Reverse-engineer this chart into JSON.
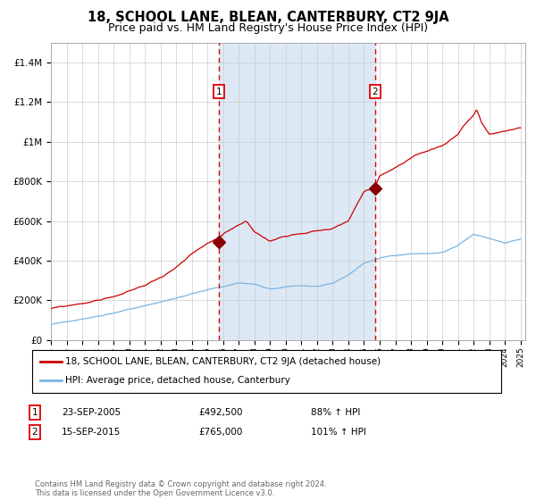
{
  "title": "18, SCHOOL LANE, BLEAN, CANTERBURY, CT2 9JA",
  "subtitle": "Price paid vs. HM Land Registry's House Price Index (HPI)",
  "title_fontsize": 10.5,
  "subtitle_fontsize": 9,
  "ylim": [
    0,
    1500000
  ],
  "yticks": [
    0,
    200000,
    400000,
    600000,
    800000,
    1000000,
    1200000,
    1400000
  ],
  "ytick_labels": [
    "£0",
    "£200K",
    "£400K",
    "£600K",
    "£800K",
    "£1M",
    "£1.2M",
    "£1.4M"
  ],
  "hpi_line_color": "#7ab4e0",
  "price_line_color": "#cc0000",
  "marker_color": "#880000",
  "bg_band_color": "#dce9f5",
  "vline_color": "#dd0000",
  "grid_color": "#cccccc",
  "legend_label_red": "18, SCHOOL LANE, BLEAN, CANTERBURY, CT2 9JA (detached house)",
  "legend_label_blue": "HPI: Average price, detached house, Canterbury",
  "annotation1_date": "23-SEP-2005",
  "annotation1_price": "£492,500",
  "annotation1_hpi": "88% ↑ HPI",
  "annotation2_date": "15-SEP-2015",
  "annotation2_price": "£765,000",
  "annotation2_hpi": "101% ↑ HPI",
  "footer": "Contains HM Land Registry data © Crown copyright and database right 2024.\nThis data is licensed under the Open Government Licence v3.0.",
  "purchase1_year": 2005.72,
  "purchase1_price": 492500,
  "purchase2_year": 2015.71,
  "purchase2_price": 765000,
  "hpi_key_years": [
    1995,
    1996,
    1997,
    1998,
    1999,
    2000,
    2001,
    2002,
    2003,
    2004,
    2005,
    2006,
    2007,
    2008,
    2009,
    2010,
    2011,
    2012,
    2013,
    2014,
    2015,
    2016,
    2017,
    2018,
    2019,
    2020,
    2021,
    2022,
    2023,
    2024,
    2025
  ],
  "hpi_key_vals": [
    78000,
    90000,
    108000,
    124000,
    143000,
    163000,
    178000,
    198000,
    218000,
    242000,
    260000,
    276000,
    296000,
    290000,
    262000,
    272000,
    278000,
    275000,
    285000,
    328000,
    388000,
    413000,
    428000,
    438000,
    438000,
    443000,
    476000,
    530000,
    508000,
    488000,
    508000
  ],
  "price_key_years": [
    1995,
    1996,
    1997,
    1998,
    1999,
    2000,
    2001,
    2002,
    2003,
    2004,
    2005,
    2005.72,
    2006,
    2007,
    2007.5,
    2008,
    2009,
    2010,
    2011,
    2012,
    2013,
    2014,
    2015,
    2015.71,
    2016,
    2017,
    2018,
    2019,
    2020,
    2021,
    2021.3,
    2022,
    2022.2,
    2022.5,
    2023,
    2024,
    2025
  ],
  "price_key_vals": [
    158000,
    168000,
    183000,
    198000,
    218000,
    243000,
    272000,
    313000,
    363000,
    423000,
    472000,
    492500,
    512000,
    563000,
    582000,
    532000,
    482000,
    513000,
    532000,
    547000,
    558000,
    592000,
    742000,
    765000,
    822000,
    863000,
    903000,
    933000,
    963000,
    1023000,
    1063000,
    1123000,
    1153000,
    1083000,
    1023000,
    1033000,
    1053000
  ],
  "hpi_noise_seed": 42,
  "hpi_noise_scale": 700,
  "price_noise_seed": 99,
  "price_noise_scale": 1100
}
